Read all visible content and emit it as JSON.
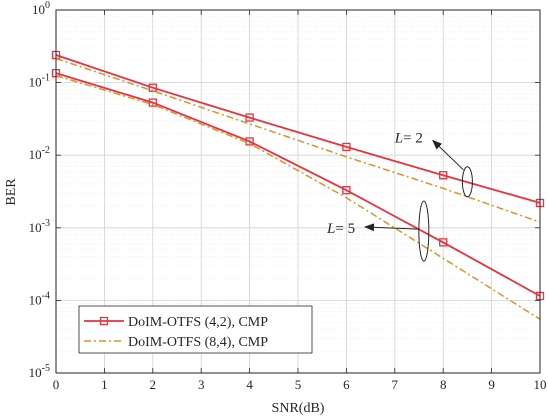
{
  "chart_data": {
    "type": "line",
    "xlabel": "SNR(dB)",
    "ylabel": "BER",
    "xlim": [
      0,
      10
    ],
    "ylim": [
      1e-05,
      1
    ],
    "yscale": "log",
    "grid": true,
    "legend_placement": "bottom-left",
    "x_ticks": [
      "0",
      "1",
      "2",
      "3",
      "4",
      "5",
      "6",
      "7",
      "8",
      "9",
      "10"
    ],
    "y_ticks": [
      {
        "base": "10",
        "exp": "0"
      },
      {
        "base": "10",
        "exp": "-1"
      },
      {
        "base": "10",
        "exp": "-2"
      },
      {
        "base": "10",
        "exp": "-3"
      },
      {
        "base": "10",
        "exp": "-4"
      },
      {
        "base": "10",
        "exp": "-5"
      }
    ],
    "series": [
      {
        "name": "DoIM-OTFS (4,2), CMP",
        "color": "#e8323c",
        "style": "solid-square-marker",
        "groups": [
          {
            "x": [
              0,
              2,
              4,
              6,
              8,
              10
            ],
            "y": [
              0.24,
              0.085,
              0.033,
              0.013,
              0.0053,
              0.0022
            ]
          },
          {
            "x": [
              0,
              2,
              4,
              6,
              8,
              10
            ],
            "y": [
              0.135,
              0.053,
              0.0155,
              0.0033,
              0.00063,
              0.000115
            ]
          }
        ]
      },
      {
        "name": "DoIM-OTFS (8,4), CMP",
        "color": "#d4952a",
        "style": "dash-dot",
        "groups": [
          {
            "x": [
              0,
              2,
              4,
              6,
              8,
              10
            ],
            "y": [
              0.215,
              0.077,
              0.027,
              0.0095,
              0.0035,
              0.0012
            ]
          },
          {
            "x": [
              0,
              2,
              4,
              6,
              8,
              10
            ],
            "y": [
              0.125,
              0.05,
              0.0145,
              0.0026,
              0.00038,
              5.5e-05
            ]
          }
        ]
      }
    ],
    "annotations": [
      {
        "label": "L",
        "value": "= 2",
        "target_x": 8.5,
        "target_y": 0.0043,
        "text_x": 7.0,
        "text_y": 0.015
      },
      {
        "label": "L",
        "value": "= 5",
        "target_x": 7.6,
        "target_y": 0.0009,
        "text_x": 5.6,
        "text_y": 0.00085
      }
    ]
  }
}
